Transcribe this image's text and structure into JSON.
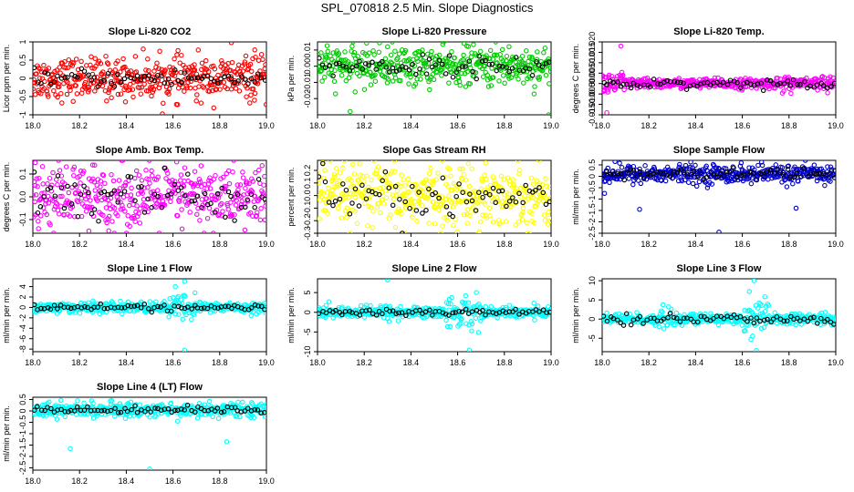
{
  "page": {
    "title": "SPL_070818  2.5 Min. Slope Diagnostics"
  },
  "series_colors": {
    "red": "#ff0000",
    "green": "#00cc00",
    "magenta": "#ff00ff",
    "yellow": "#ffff00",
    "blue": "#0000cc",
    "cyan": "#00ffff",
    "overlay": "#000000"
  },
  "chart_data": [
    {
      "type": "scatter",
      "title": "Slope Li-820 CO2",
      "ylabel": "Licor ppm per min.",
      "xlabel": "",
      "color": "#ff0000",
      "xlim": [
        18.0,
        19.0
      ],
      "ylim": [
        -1.0,
        1.0
      ],
      "x_ticks": [
        18.0,
        18.2,
        18.4,
        18.6,
        18.8,
        19.0
      ],
      "y_ticks": [
        -1.0,
        -0.5,
        0.0,
        0.5,
        1.0
      ],
      "y_tick_labels": [
        "-1",
        "-0.5",
        "0",
        "0.5",
        "1"
      ],
      "dense": {
        "center": 0.0,
        "spread": 0.28
      },
      "overlay_spread": 0.12,
      "outliers": [
        {
          "x": 18.85,
          "y": 0.98
        },
        {
          "x": 18.62,
          "y": -0.72
        },
        {
          "x": 18.95,
          "y": 0.78
        },
        {
          "x": 18.7,
          "y": -0.62
        }
      ]
    },
    {
      "type": "scatter",
      "title": "Slope Li-820 Pressure",
      "ylabel": "kPa per min.",
      "xlabel": "",
      "color": "#00cc00",
      "xlim": [
        18.0,
        19.0
      ],
      "ylim": [
        -0.03,
        0.015
      ],
      "x_ticks": [
        18.0,
        18.2,
        18.4,
        18.6,
        18.8,
        19.0
      ],
      "y_ticks": [
        -0.02,
        -0.01,
        0.0,
        0.01
      ],
      "y_tick_labels": [
        "-0.02",
        "-0.01",
        "0.00",
        "0.01"
      ],
      "dense": {
        "center": 0.0,
        "spread": 0.006
      },
      "overlay_spread": 0.003,
      "outliers": [
        {
          "x": 18.14,
          "y": -0.028
        },
        {
          "x": 18.82,
          "y": 0.012
        },
        {
          "x": 18.99,
          "y": -0.03
        },
        {
          "x": 18.3,
          "y": 0.012
        }
      ]
    },
    {
      "type": "scatter",
      "title": "Slope Li-820 Temp.",
      "ylabel": "degrees C per min.",
      "xlabel": "",
      "color": "#ff00ff",
      "xlim": [
        18.0,
        19.0
      ],
      "ylim": [
        -0.015,
        0.02
      ],
      "x_ticks": [
        18.0,
        18.2,
        18.4,
        18.6,
        18.8,
        19.0
      ],
      "y_ticks": [
        -0.015,
        -0.01,
        -0.005,
        0.0,
        0.005,
        0.01,
        0.015,
        0.02
      ],
      "y_tick_labels": [
        "-0.015",
        "-0.010",
        "-0.005",
        "0.000",
        "0.005",
        "0.010",
        "0.015",
        "0.020"
      ],
      "dense": {
        "center": 0.0,
        "spread": 0.0012
      },
      "burst_ranges": [
        [
          18.0,
          18.1,
          0.006
        ],
        [
          18.76,
          18.84,
          0.004
        ],
        [
          18.94,
          19.0,
          0.004
        ]
      ],
      "overlay_spread": 0.001,
      "outliers": [
        {
          "x": 18.08,
          "y": 0.018
        },
        {
          "x": 18.02,
          "y": -0.014
        }
      ]
    },
    {
      "type": "scatter",
      "title": "Slope Amb. Box Temp.",
      "ylabel": "degrees C per min.",
      "xlabel": "",
      "color": "#ff00ff",
      "xlim": [
        18.0,
        19.0
      ],
      "ylim": [
        -0.16,
        0.16
      ],
      "x_ticks": [
        18.0,
        18.2,
        18.4,
        18.6,
        18.8,
        19.0
      ],
      "y_ticks": [
        -0.1,
        0.0,
        0.1
      ],
      "y_tick_labels": [
        "-0.1",
        "0.0",
        "0.1"
      ],
      "dense": {
        "center": 0.0,
        "spread": 0.07
      },
      "overlay_spread": 0.06,
      "outliers": [
        {
          "x": 18.01,
          "y": 0.15
        },
        {
          "x": 18.24,
          "y": -0.15
        }
      ]
    },
    {
      "type": "scatter",
      "title": "Slope Gas Stream RH",
      "ylabel": "percent per min.",
      "xlabel": "",
      "color": "#ffff00",
      "xlim": [
        18.0,
        19.0
      ],
      "ylim": [
        -0.3,
        0.28
      ],
      "x_ticks": [
        18.0,
        18.2,
        18.4,
        18.6,
        18.8,
        19.0
      ],
      "y_ticks": [
        -0.3,
        -0.2,
        -0.1,
        0.0,
        0.1,
        0.2
      ],
      "y_tick_labels": [
        "-0.3",
        "-0.2",
        "-0.1",
        "0.0",
        "0.1",
        "0.2"
      ],
      "dense": {
        "center": 0.0,
        "spread": 0.12
      },
      "overlay_spread": 0.09,
      "outliers": [
        {
          "x": 18.37,
          "y": -0.3
        },
        {
          "x": 18.72,
          "y": 0.26
        }
      ]
    },
    {
      "type": "scatter",
      "title": "Slope Sample Flow",
      "ylabel": "ml/min per min.",
      "xlabel": "",
      "color": "#0000cc",
      "xlim": [
        18.0,
        19.0
      ],
      "ylim": [
        -2.5,
        0.7
      ],
      "x_ticks": [
        18.0,
        18.2,
        18.4,
        18.6,
        18.8,
        19.0
      ],
      "y_ticks": [
        -2.5,
        -2.0,
        -1.5,
        -1.0,
        -0.5,
        0.0,
        0.5
      ],
      "y_tick_labels": [
        "-2.5",
        "-2",
        "-1.5",
        "-1",
        "-0.5",
        "0",
        "0.5"
      ],
      "dense": {
        "center": 0.1,
        "spread": 0.2
      },
      "overlay_spread": 0.12,
      "outliers": [
        {
          "x": 18.16,
          "y": -1.45
        },
        {
          "x": 18.83,
          "y": -1.4
        },
        {
          "x": 18.5,
          "y": -2.45
        },
        {
          "x": 18.01,
          "y": -0.75
        },
        {
          "x": 18.92,
          "y": -0.2
        }
      ]
    },
    {
      "type": "scatter",
      "title": "Slope Line 1 Flow",
      "ylabel": "ml/min per min.",
      "xlabel": "",
      "color": "#00ffff",
      "xlim": [
        18.0,
        19.0
      ],
      "ylim": [
        -8.5,
        5.5
      ],
      "x_ticks": [
        18.0,
        18.2,
        18.4,
        18.6,
        18.8,
        19.0
      ],
      "y_ticks": [
        -8,
        -6,
        -4,
        -2,
        0,
        2,
        4
      ],
      "y_tick_labels": [
        "-8",
        "-6",
        "-4",
        "-2",
        "0",
        "2",
        "4"
      ],
      "dense": {
        "center": 0.0,
        "spread": 0.5
      },
      "burst_ranges": [
        [
          18.58,
          18.7,
          2.5
        ],
        [
          18.2,
          18.3,
          1.0
        ]
      ],
      "overlay_spread": 0.3,
      "outliers": [
        {
          "x": 18.65,
          "y": -8.2
        },
        {
          "x": 18.65,
          "y": 5.0
        },
        {
          "x": 18.61,
          "y": 4.0
        }
      ]
    },
    {
      "type": "scatter",
      "title": "Slope Line 2 Flow",
      "ylabel": "ml/min per min.",
      "xlabel": "",
      "color": "#00ffff",
      "xlim": [
        18.0,
        19.0
      ],
      "ylim": [
        -10.0,
        8.5
      ],
      "x_ticks": [
        18.0,
        18.2,
        18.4,
        18.6,
        18.8,
        19.0
      ],
      "y_ticks": [
        -10,
        -5,
        0,
        5
      ],
      "y_tick_labels": [
        "-10",
        "-5",
        "0",
        "5"
      ],
      "dense": {
        "center": 0.0,
        "spread": 0.7
      },
      "burst_ranges": [
        [
          18.55,
          18.7,
          4.0
        ],
        [
          18.25,
          18.32,
          2.0
        ]
      ],
      "overlay_spread": 0.5,
      "outliers": [
        {
          "x": 18.3,
          "y": 8.2
        },
        {
          "x": 18.65,
          "y": -9.6
        },
        {
          "x": 18.68,
          "y": 5.0
        }
      ]
    },
    {
      "type": "scatter",
      "title": "Slope Line 3 Flow",
      "ylabel": "ml/min per min.",
      "xlabel": "",
      "color": "#00ffff",
      "xlim": [
        18.0,
        19.0
      ],
      "ylim": [
        -8.5,
        10.5
      ],
      "x_ticks": [
        18.0,
        18.2,
        18.4,
        18.6,
        18.8,
        19.0
      ],
      "y_ticks": [
        -5,
        0,
        5,
        10
      ],
      "y_tick_labels": [
        "-5",
        "0",
        "5",
        "10"
      ],
      "dense": {
        "center": 0.0,
        "spread": 0.7
      },
      "burst_ranges": [
        [
          18.6,
          18.72,
          4.5
        ],
        [
          18.24,
          18.3,
          2.5
        ]
      ],
      "overlay_spread": 0.6,
      "outliers": [
        {
          "x": 18.65,
          "y": 10.0
        },
        {
          "x": 18.66,
          "y": -8.2
        },
        {
          "x": 18.63,
          "y": 7.2
        }
      ]
    },
    {
      "type": "scatter",
      "title": "Slope Line 4 (LT) Flow",
      "ylabel": "ml/min per min.",
      "xlabel": "",
      "color": "#00ffff",
      "xlim": [
        18.0,
        19.0
      ],
      "ylim": [
        -2.6,
        0.6
      ],
      "x_ticks": [
        18.0,
        18.2,
        18.4,
        18.6,
        18.8,
        19.0
      ],
      "y_ticks": [
        -2.5,
        -2.0,
        -1.5,
        -1.0,
        -0.5,
        0.0,
        0.5
      ],
      "y_tick_labels": [
        "-2.5",
        "-2",
        "-1.5",
        "-1",
        "-0.5",
        "0",
        "0.5"
      ],
      "dense": {
        "center": 0.05,
        "spread": 0.15
      },
      "overlay_spread": 0.07,
      "outliers": [
        {
          "x": 18.16,
          "y": -1.65
        },
        {
          "x": 18.83,
          "y": -1.35
        },
        {
          "x": 18.5,
          "y": -2.55
        },
        {
          "x": 18.62,
          "y": -0.45
        }
      ]
    }
  ]
}
